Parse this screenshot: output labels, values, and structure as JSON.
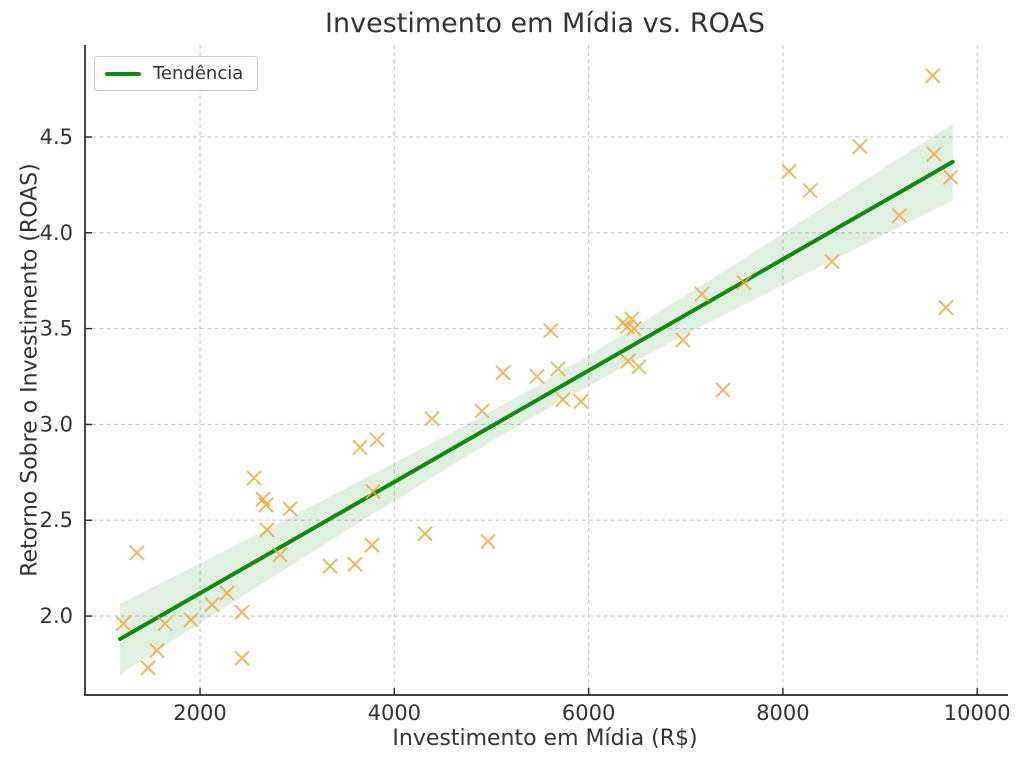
{
  "chart_data": {
    "type": "scatter",
    "title": "Investimento em Mídia vs. ROAS",
    "xlabel": "Investimento em Mídia (R$)",
    "ylabel": "Retorno Sobre o Investimento (ROAS)",
    "legend": {
      "label": "Tendência",
      "position": "upper-left"
    },
    "grid": true,
    "xlim": [
      816,
      10286
    ],
    "ylim": [
      1.588,
      4.98
    ],
    "xticks": [
      2000,
      4000,
      6000,
      8000,
      10000
    ],
    "xtick_labels": [
      "2000",
      "4000",
      "6000",
      "8000",
      "10000"
    ],
    "yticks": [
      2.0,
      2.5,
      3.0,
      3.5,
      4.0,
      4.5
    ],
    "ytick_labels": [
      "2.0",
      "2.5",
      "3.0",
      "3.5",
      "4.0",
      "4.5"
    ],
    "points": [
      [
        1210,
        1.96
      ],
      [
        1350,
        2.33
      ],
      [
        1465,
        1.73
      ],
      [
        1557,
        1.82
      ],
      [
        1640,
        1.96
      ],
      [
        1907,
        1.98
      ],
      [
        2124,
        2.06
      ],
      [
        2278,
        2.12
      ],
      [
        2432,
        2.02
      ],
      [
        2432,
        1.78
      ],
      [
        2556,
        2.72
      ],
      [
        2648,
        2.61
      ],
      [
        2679,
        2.58
      ],
      [
        2690,
        2.45
      ],
      [
        2823,
        2.32
      ],
      [
        2926,
        2.56
      ],
      [
        3338,
        2.26
      ],
      [
        3595,
        2.27
      ],
      [
        3647,
        2.88
      ],
      [
        3770,
        2.37
      ],
      [
        3781,
        2.65
      ],
      [
        3822,
        2.92
      ],
      [
        4316,
        2.43
      ],
      [
        4388,
        3.03
      ],
      [
        4903,
        3.07
      ],
      [
        4964,
        2.39
      ],
      [
        5119,
        3.27
      ],
      [
        5469,
        3.25
      ],
      [
        5610,
        3.49
      ],
      [
        5685,
        3.29
      ],
      [
        5736,
        3.13
      ],
      [
        5922,
        3.12
      ],
      [
        6351,
        3.53
      ],
      [
        6399,
        3.51
      ],
      [
        6444,
        3.55
      ],
      [
        6467,
        3.5
      ],
      [
        6405,
        3.33
      ],
      [
        6518,
        3.3
      ],
      [
        6971,
        3.44
      ],
      [
        7167,
        3.68
      ],
      [
        7383,
        3.18
      ],
      [
        7599,
        3.74
      ],
      [
        8063,
        4.32
      ],
      [
        8279,
        4.22
      ],
      [
        8505,
        3.85
      ],
      [
        8793,
        4.45
      ],
      [
        9199,
        4.09
      ],
      [
        9542,
        4.82
      ],
      [
        9556,
        4.41
      ],
      [
        9678,
        3.61
      ],
      [
        9727,
        4.29
      ]
    ],
    "trend": {
      "x_start": 1177,
      "x_end": 9748,
      "y_start": 1.88,
      "y_end": 4.37,
      "slope": 0.0002905,
      "intercept": 1.538
    },
    "band": {
      "x": [
        1177,
        2320,
        3460,
        4600,
        5460,
        6320,
        7460,
        8600,
        9748
      ],
      "halfwidth": [
        0.185,
        0.145,
        0.112,
        0.085,
        0.075,
        0.085,
        0.115,
        0.158,
        0.2
      ]
    },
    "colors": {
      "marker": "#F2A63C",
      "trend": "#0E8A0E",
      "band": "#0E8A0E",
      "band_opacity": 0.13,
      "grid": "#CBCBCB",
      "spine": "#262626",
      "text": "#333333"
    }
  }
}
